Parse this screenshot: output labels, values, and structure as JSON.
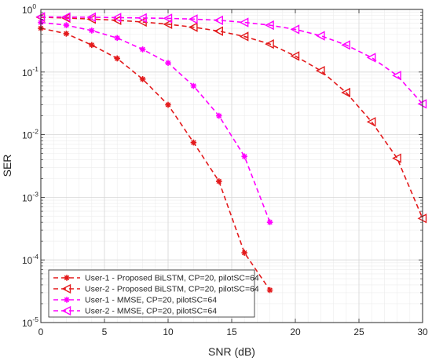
{
  "chart_data": {
    "type": "line",
    "xlabel": "SNR (dB)",
    "ylabel": "SER",
    "xlim": [
      0,
      30
    ],
    "ylim": [
      1e-05,
      1
    ],
    "yscale": "log",
    "grid": true,
    "minor_grid": true,
    "legend_position": "bottom-left",
    "x_ticks": [
      0,
      5,
      10,
      15,
      20,
      25,
      30
    ],
    "x_tick_labels": [
      "0",
      "5",
      "10",
      "15",
      "20",
      "25",
      "30"
    ],
    "y_ticks": [
      1e-05,
      0.0001,
      0.001,
      0.01,
      0.1,
      1
    ],
    "y_tick_labels": [
      {
        "base": "10",
        "exp": "-5"
      },
      {
        "base": "10",
        "exp": "-4"
      },
      {
        "base": "10",
        "exp": "-3"
      },
      {
        "base": "10",
        "exp": "-2"
      },
      {
        "base": "10",
        "exp": "-1"
      },
      {
        "base": "10",
        "exp": "0"
      }
    ],
    "series": [
      {
        "name": "User-1 - Proposed BiLSTM, CP=20, pilotSC=64",
        "color": "#e31a1c",
        "marker": "asterisk",
        "x": [
          0,
          2,
          4,
          6,
          8,
          10,
          12,
          14,
          16,
          18
        ],
        "y": [
          0.5,
          0.41,
          0.27,
          0.165,
          0.077,
          0.03,
          0.0075,
          0.0018,
          0.00013,
          3.3e-05
        ]
      },
      {
        "name": "User-2 - Proposed BiLSTM, CP=20, pilotSC=64",
        "color": "#e31a1c",
        "marker": "triangle-left",
        "x": [
          0,
          2,
          4,
          6,
          8,
          10,
          12,
          14,
          16,
          18,
          20,
          22,
          24,
          26,
          28,
          30
        ],
        "y": [
          0.75,
          0.73,
          0.7,
          0.67,
          0.63,
          0.58,
          0.52,
          0.45,
          0.37,
          0.28,
          0.18,
          0.105,
          0.047,
          0.016,
          0.0042,
          0.00046
        ]
      },
      {
        "name": "User-1 - MMSE, CP=20, pilotSC=64",
        "color": "#ff00ff",
        "marker": "asterisk",
        "x": [
          0,
          2,
          4,
          6,
          8,
          10,
          12,
          14,
          16,
          18
        ],
        "y": [
          0.62,
          0.56,
          0.46,
          0.35,
          0.23,
          0.14,
          0.06,
          0.02,
          0.0045,
          0.0004
        ]
      },
      {
        "name": "User-2 - MMSE, CP=20, pilotSC=64",
        "color": "#ff00ff",
        "marker": "triangle-left",
        "x": [
          0,
          2,
          4,
          6,
          8,
          10,
          12,
          14,
          16,
          18,
          20,
          22,
          24,
          26,
          28,
          30
        ],
        "y": [
          0.76,
          0.755,
          0.75,
          0.74,
          0.73,
          0.72,
          0.7,
          0.67,
          0.62,
          0.56,
          0.48,
          0.38,
          0.27,
          0.17,
          0.088,
          0.031
        ]
      }
    ]
  }
}
